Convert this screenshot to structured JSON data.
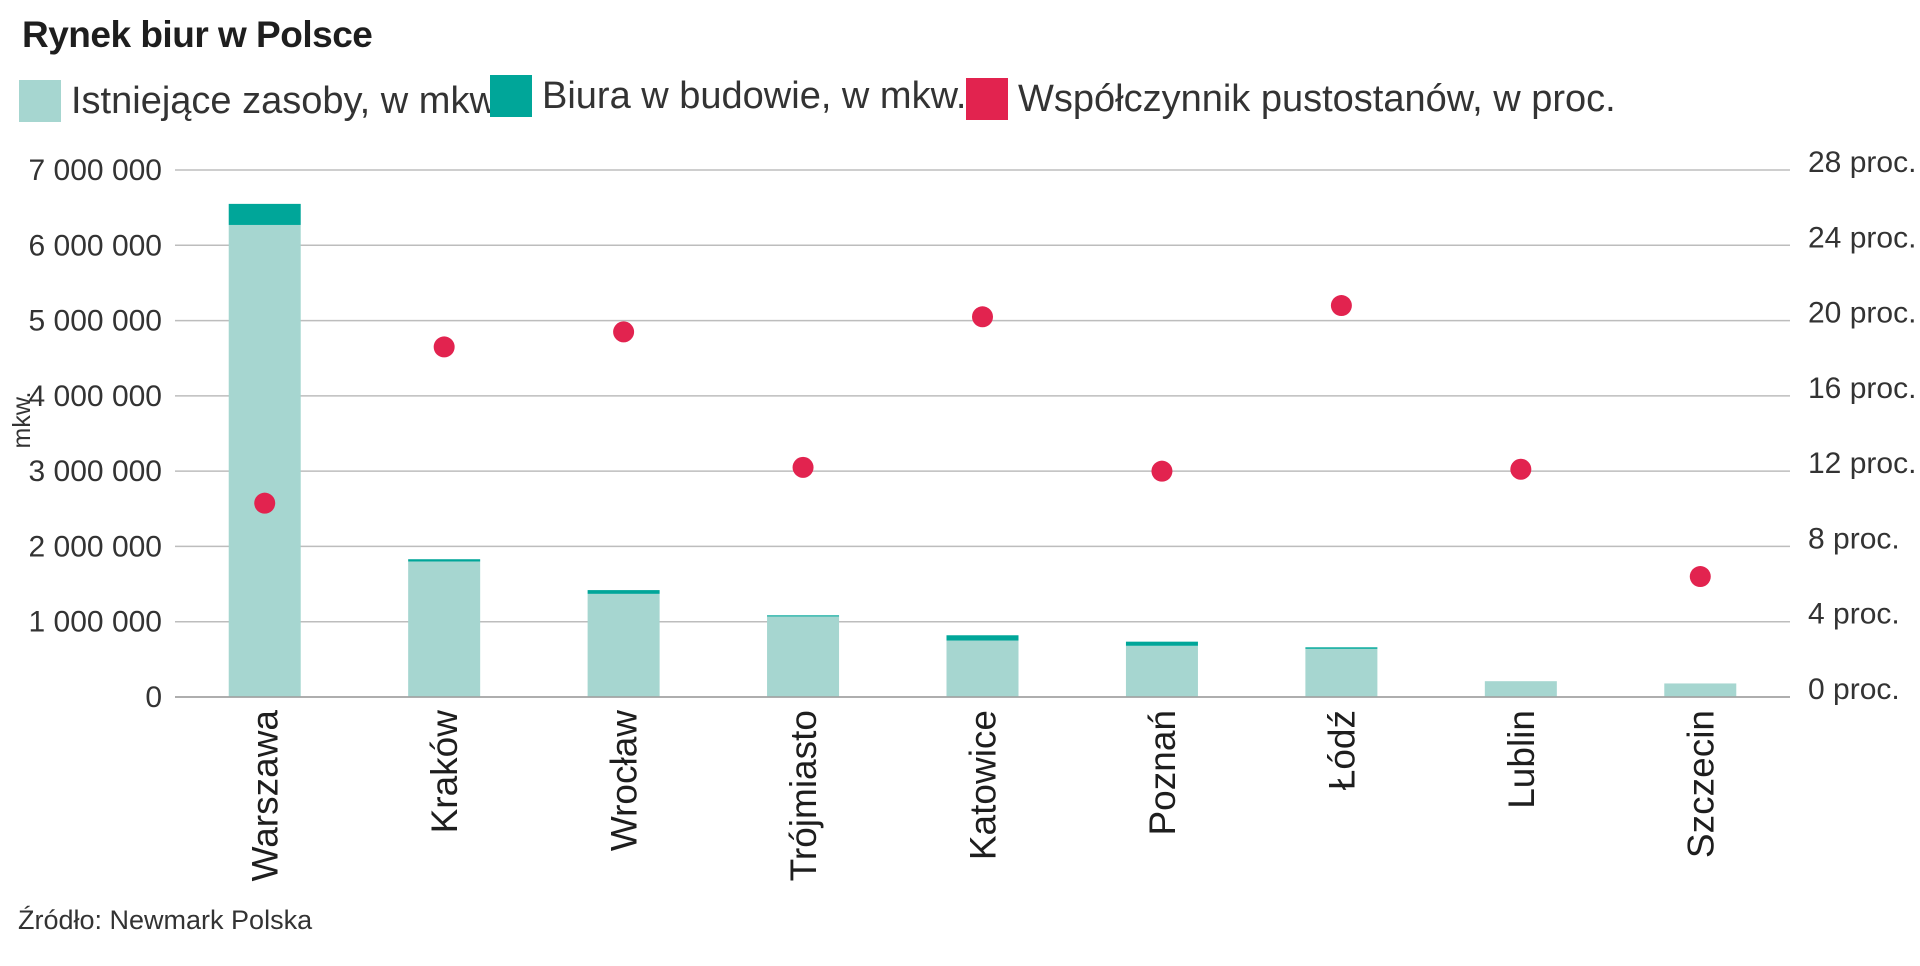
{
  "chart_data": {
    "type": "bar",
    "title": "Rynek biur w Polsce",
    "categories": [
      "Warszawa",
      "Kraków",
      "Wrocław",
      "Trójmiasto",
      "Katowice",
      "Poznań",
      "Łódź",
      "Lublin",
      "Szczecin"
    ],
    "series": [
      {
        "name": "Istniejące zasoby, w mkw.",
        "kind": "bar-stacked",
        "axis": "left",
        "color": "#a6d6d0",
        "values": [
          6270000,
          1800000,
          1370000,
          1070000,
          750000,
          680000,
          640000,
          210000,
          180000
        ]
      },
      {
        "name": "Biura w budowie, w mkw.",
        "kind": "bar-stacked",
        "axis": "left",
        "color": "#00a699",
        "values": [
          280000,
          30000,
          50000,
          15000,
          70000,
          55000,
          20000,
          0,
          0
        ]
      },
      {
        "name": "Współczynnik pustostanów, w proc.",
        "kind": "scatter",
        "axis": "right",
        "color": "#e2234f",
        "values": [
          10.3,
          18.6,
          19.4,
          12.2,
          20.2,
          12.0,
          20.8,
          12.1,
          6.4
        ]
      }
    ],
    "ylabel": "mkw.",
    "ylim": [
      0,
      7000000
    ],
    "y_ticks": [
      0,
      1000000,
      2000000,
      3000000,
      4000000,
      5000000,
      6000000,
      7000000
    ],
    "y_tick_labels": [
      "0",
      "1 000 000",
      "2 000 000",
      "3 000 000",
      "4 000 000",
      "5 000 000",
      "6 000 000",
      "7 000 000"
    ],
    "y2lim": [
      0,
      28
    ],
    "y2_ticks": [
      0,
      4,
      8,
      12,
      16,
      20,
      24,
      28
    ],
    "y2_tick_labels": [
      "0 proc.",
      "4 proc.",
      "8 proc.",
      "12 proc.",
      "16 proc.",
      "20 proc.",
      "24 proc.",
      "28 proc."
    ],
    "grid": true,
    "legend_position": "top-left",
    "source": "Źródło: Newmark Polska"
  },
  "colors": {
    "grid": "#bdbdbd",
    "text": "#333333"
  }
}
